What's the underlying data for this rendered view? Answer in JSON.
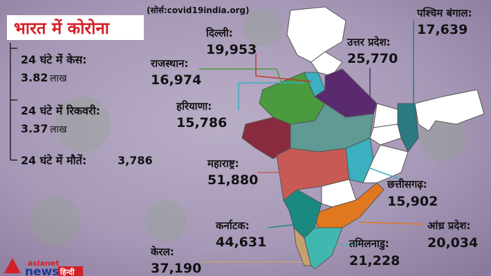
{
  "header": {
    "title": "भारत में कोरोना",
    "source": "(सोर्स:covid19india.org)"
  },
  "stats": [
    {
      "label": "24 घंटे में केस:",
      "value": "3.82",
      "unit": "लाख"
    },
    {
      "label": "24 घंटे में रिकवरी:",
      "value": "3.37",
      "unit": "लाख"
    },
    {
      "label": "24 घंटे में मौतें:",
      "value": "3,786"
    }
  ],
  "states": [
    {
      "name": "दिल्ली:",
      "value": "19,953"
    },
    {
      "name": "राजस्थान:",
      "value": "16,974"
    },
    {
      "name": "हरियाणा:",
      "value": "15,786"
    },
    {
      "name": "महाराष्ट्र:",
      "value": "51,880"
    },
    {
      "name": "कर्नाटक:",
      "value": "44,631"
    },
    {
      "name": "केरल:",
      "value": "37,190"
    },
    {
      "name": "उत्तर प्रदेश:",
      "value": "25,770"
    },
    {
      "name": "पश्चिम बंगाल:",
      "value": "17,639"
    },
    {
      "name": "छत्तीसगढ़:",
      "value": "15,902"
    },
    {
      "name": "आंध्र प्रदेश:",
      "value": "20,034"
    },
    {
      "name": "तमिलनाडु:",
      "value": "21,228"
    }
  ],
  "logo": {
    "brand": "asianet",
    "name": "news",
    "lang": "हिन्दी"
  }
}
